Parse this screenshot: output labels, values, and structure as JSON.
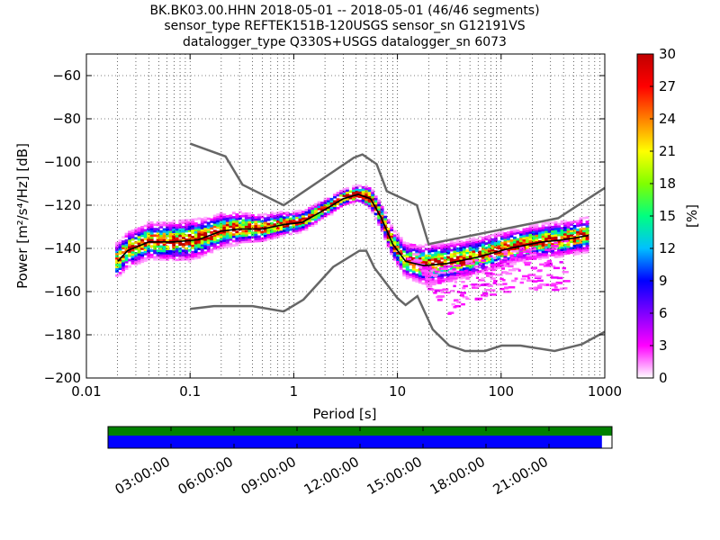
{
  "chart_data": {
    "type": "heatmap",
    "title_lines": [
      "BK.BK03.00.HHN   2018-05-01 -- 2018-05-01  (46/46 segments)",
      "sensor_type REFTEK151B-120USGS sensor_sn G12191VS",
      "datalogger_type Q330S+USGS datalogger_sn 6073"
    ],
    "xlabel": "Period [s]",
    "ylabel": "Power [m²/s⁴/Hz] [dB]",
    "x_scale": "log",
    "xlim": [
      0.01,
      1000
    ],
    "ylim": [
      -200,
      -50
    ],
    "x_ticks": [
      0.01,
      0.1,
      1,
      10,
      100,
      1000
    ],
    "x_tick_labels": [
      "0.01",
      "0.1",
      "1",
      "10",
      "100",
      "1000"
    ],
    "y_ticks": [
      -200,
      -180,
      -160,
      -140,
      -120,
      -100,
      -80,
      -60
    ],
    "y_tick_labels": [
      "−200",
      "−180",
      "−160",
      "−140",
      "−120",
      "−100",
      "−80",
      "−60"
    ],
    "grid": "dotted",
    "colorbar": {
      "label": "[%]",
      "range": [
        0,
        30
      ],
      "ticks": [
        "0",
        "3",
        "6",
        "9",
        "12",
        "15",
        "18",
        "21",
        "24",
        "27",
        "30"
      ],
      "colormap_stops": [
        "#ffffff",
        "#ff00ff",
        "#8000ff",
        "#0000ff",
        "#00c0ff",
        "#00ff80",
        "#80ff00",
        "#ffff00",
        "#ff8000",
        "#ff0000",
        "#c00000"
      ]
    },
    "nhnm": [
      {
        "period": 0.1,
        "power": -91.5
      },
      {
        "period": 0.22,
        "power": -97.4
      },
      {
        "period": 0.32,
        "power": -110.5
      },
      {
        "period": 0.8,
        "power": -120
      },
      {
        "period": 3.8,
        "power": -98
      },
      {
        "period": 4.6,
        "power": -96.5
      },
      {
        "period": 6.3,
        "power": -101
      },
      {
        "period": 7.9,
        "power": -113.5
      },
      {
        "period": 15.4,
        "power": -120
      },
      {
        "period": 20,
        "power": -138
      },
      {
        "period": 354.8,
        "power": -126
      },
      {
        "period": 1000,
        "power": -112
      }
    ],
    "nlnm": [
      {
        "period": 0.1,
        "power": -168
      },
      {
        "period": 0.17,
        "power": -166.7
      },
      {
        "period": 0.4,
        "power": -166.7
      },
      {
        "period": 0.8,
        "power": -169.2
      },
      {
        "period": 1.24,
        "power": -163.7
      },
      {
        "period": 2.4,
        "power": -148.6
      },
      {
        "period": 4.3,
        "power": -141.1
      },
      {
        "period": 5,
        "power": -141.1
      },
      {
        "period": 6,
        "power": -149
      },
      {
        "period": 10,
        "power": -163
      },
      {
        "period": 12,
        "power": -166.2
      },
      {
        "period": 15.6,
        "power": -162.1
      },
      {
        "period": 21.9,
        "power": -177.5
      },
      {
        "period": 31.6,
        "power": -185
      },
      {
        "period": 45,
        "power": -187.5
      },
      {
        "period": 70,
        "power": -187.5
      },
      {
        "period": 101,
        "power": -185
      },
      {
        "period": 154,
        "power": -185
      },
      {
        "period": 328,
        "power": -187.5
      },
      {
        "period": 600,
        "power": -184.4
      },
      {
        "period": 1000,
        "power": -178.6
      }
    ],
    "median_curve": [
      {
        "period": 0.02,
        "power": -146
      },
      {
        "period": 0.025,
        "power": -141
      },
      {
        "period": 0.04,
        "power": -137
      },
      {
        "period": 0.07,
        "power": -137
      },
      {
        "period": 0.12,
        "power": -136
      },
      {
        "period": 0.2,
        "power": -132
      },
      {
        "period": 0.3,
        "power": -131
      },
      {
        "period": 0.5,
        "power": -131
      },
      {
        "period": 0.8,
        "power": -129
      },
      {
        "period": 1.2,
        "power": -128
      },
      {
        "period": 2,
        "power": -122
      },
      {
        "period": 3,
        "power": -117
      },
      {
        "period": 4.2,
        "power": -115
      },
      {
        "period": 5.5,
        "power": -117
      },
      {
        "period": 7,
        "power": -126
      },
      {
        "period": 9,
        "power": -138
      },
      {
        "period": 12,
        "power": -146
      },
      {
        "period": 18,
        "power": -148
      },
      {
        "period": 30,
        "power": -147
      },
      {
        "period": 60,
        "power": -144
      },
      {
        "period": 120,
        "power": -140
      },
      {
        "period": 250,
        "power": -137
      },
      {
        "period": 400,
        "power": -136
      },
      {
        "period": 700,
        "power": -134
      }
    ],
    "band_half_width": [
      {
        "period": 0.02,
        "width": 5
      },
      {
        "period": 0.1,
        "width": 6
      },
      {
        "period": 1,
        "width": 3
      },
      {
        "period": 4,
        "width": 2
      },
      {
        "period": 8,
        "width": 4
      },
      {
        "period": 20,
        "width": 6
      },
      {
        "period": 100,
        "width": 5
      },
      {
        "period": 700,
        "width": 5
      }
    ],
    "outlier_tail": [
      {
        "period": 12,
        "power": -133
      },
      {
        "period": 20,
        "power": -160
      },
      {
        "period": 30,
        "power": -170
      },
      {
        "period": 60,
        "power": -164
      },
      {
        "period": 100,
        "power": -160
      }
    ],
    "timeline": {
      "tick_labels": [
        "03:00:00",
        "06:00:00",
        "09:00:00",
        "12:00:00",
        "15:00:00",
        "18:00:00",
        "21:00:00"
      ],
      "tick_hours": [
        3,
        6,
        9,
        12,
        15,
        18,
        21
      ],
      "span_hours": [
        0,
        24
      ],
      "data_coverage_fraction": 0.98,
      "top_bar_color": "#008000",
      "bottom_bar_color": "#0000ff"
    }
  }
}
